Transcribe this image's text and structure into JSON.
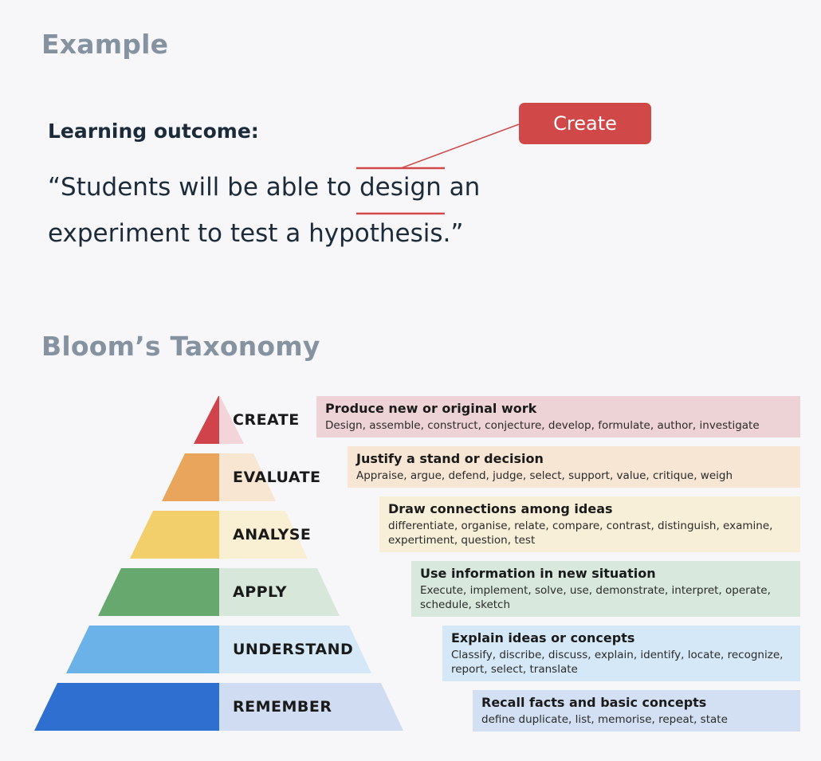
{
  "example": {
    "title": "Example",
    "outcome_label": "Learning outcome:",
    "quote_before": "“Students will be able to ",
    "quote_highlight": "design",
    "quote_after": " an",
    "quote_line2": "experiment to test a hypothesis.”",
    "callout_label": "Create"
  },
  "taxonomy": {
    "title": "Bloom’s Taxonomy",
    "levels": [
      {
        "label": "CREATE",
        "title": "Produce new or original work",
        "verbs": "Design, assemble, construct, conjecture, develop, formulate, author, investigate",
        "color": "#d0434b",
        "light_color": "#f3d4d8",
        "box_color": "#eed3d6"
      },
      {
        "label": "EVALUATE",
        "title": "Justify a stand or decision",
        "verbs": "Appraise, argue, defend, judge, select, support, value, critique, weigh",
        "color": "#e8a55b",
        "light_color": "#f8e6d3",
        "box_color": "#f6e6d3"
      },
      {
        "label": "ANALYSE",
        "title": "Draw connections among ideas",
        "verbs": "differentiate, organise, relate, compare, contrast, distinguish, examine, expertiment, question, test",
        "color": "#f2cf6a",
        "light_color": "#f9efd3",
        "box_color": "#f7efd8"
      },
      {
        "label": "APPLY",
        "title": "Use information in new situation",
        "verbs": "Execute, implement, solve, use, demonstrate, interpret, operate, schedule, sketch",
        "color": "#66a86e",
        "light_color": "#d7e8db",
        "box_color": "#d8e8dd"
      },
      {
        "label": "UNDERSTAND",
        "title": "Explain ideas or concepts",
        "verbs": "Classify, discribe, discuss, explain, identify, locate, recognize, report, select, translate",
        "color": "#6ab2e8",
        "light_color": "#d4e8f7",
        "box_color": "#d5e8f7"
      },
      {
        "label": "REMEMBER",
        "title": "Recall facts and basic concepts",
        "verbs": "define duplicate, list, memorise, repeat, state",
        "color": "#2e6fd0",
        "light_color": "#cfdcf2",
        "box_color": "#d3e0f3"
      }
    ]
  },
  "colors": {
    "accent": "#d04848",
    "heading": "#8593a1",
    "text": "#1c2b3a",
    "background": "#f7f7fa"
  }
}
